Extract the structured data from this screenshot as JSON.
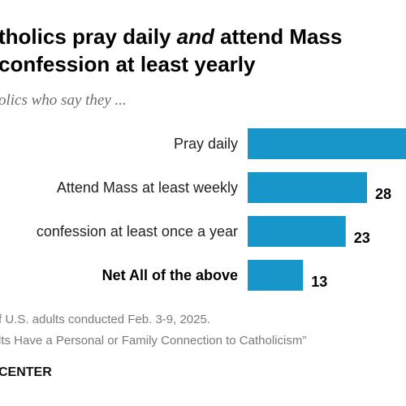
{
  "title_part1": "tholics pray daily ",
  "title_emph": "and",
  "title_part2": " attend Mass",
  "title_line2": "confession at least yearly",
  "subtitle": "olics who say they ...",
  "note_line1": "f U.S. adults conducted Feb. 3-9, 2025.",
  "note_line2": "lts Have a Personal or Family Connection to Catholicism”",
  "brand": "CENTER",
  "colors": {
    "bar": "#1796c9"
  },
  "chart_data": {
    "type": "bar",
    "orientation": "horizontal",
    "categories": [
      "Pray daily",
      "Attend Mass at least weekly",
      "confession at least once a year",
      "Net All of the above"
    ],
    "values": [
      null,
      28,
      23,
      13
    ],
    "value_labels": [
      "",
      "28",
      "23",
      "13"
    ],
    "bold_categories": [
      "Net All of the above"
    ],
    "title": "",
    "xlabel": "",
    "ylabel": "",
    "grid": false
  }
}
